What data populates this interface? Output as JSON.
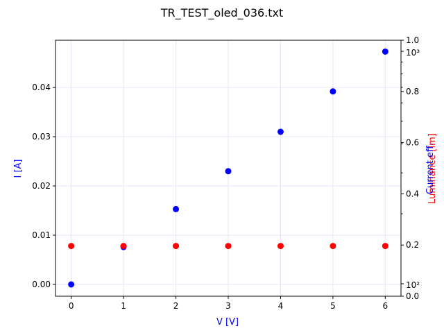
{
  "chart_data": {
    "type": "scatter",
    "title": "TR_TEST_oled_036.txt",
    "xlabel": "V [V]",
    "ylabel": "I [A]",
    "ylabel_right_outer": "Luminance [lm]",
    "ylabel_right_inner": "Current eff.",
    "xlim": [
      -0.3,
      6.3
    ],
    "ylim": [
      -0.0024,
      0.0496
    ],
    "x_ticks": [
      0,
      1,
      2,
      3,
      4,
      5,
      6
    ],
    "x_tick_labels": [
      "0",
      "1",
      "2",
      "3",
      "4",
      "5",
      "6"
    ],
    "y_ticks": [
      0.0,
      0.01,
      0.02,
      0.03,
      0.04
    ],
    "y_tick_labels": [
      "0.00",
      "0.01",
      "0.02",
      "0.03",
      "0.04"
    ],
    "right_linear_ticks": [
      0.0,
      0.2,
      0.4,
      0.6,
      0.8,
      1.0
    ],
    "right_linear_tick_labels": [
      "0.0",
      "0.2",
      "0.4",
      "0.6",
      "0.8",
      "1.0"
    ],
    "right_log_tick_labels": [
      "10²",
      "10³"
    ],
    "grid": true,
    "series": [
      {
        "name": "I [A]",
        "color": "#0000ff",
        "x": [
          0,
          1,
          2,
          3,
          4,
          5,
          6
        ],
        "y": [
          0.0,
          0.0076,
          0.0153,
          0.023,
          0.031,
          0.0392,
          0.0473
        ]
      },
      {
        "name": "Luminance [lm]",
        "color": "#ff0000",
        "x": [
          0,
          1,
          2,
          3,
          4,
          5,
          6
        ],
        "y": [
          0.0078,
          0.0078,
          0.0078,
          0.0078,
          0.0078,
          0.0078,
          0.0078
        ]
      }
    ]
  }
}
